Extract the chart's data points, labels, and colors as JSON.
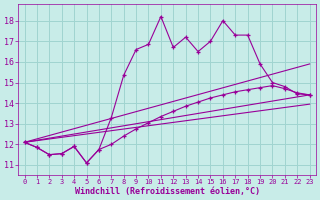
{
  "xlabel": "Windchill (Refroidissement éolien,°C)",
  "bg_color": "#c8ece8",
  "grid_color": "#a0d4d0",
  "line_color": "#990099",
  "x_ticks": [
    0,
    1,
    2,
    3,
    4,
    5,
    6,
    7,
    8,
    9,
    10,
    11,
    12,
    13,
    14,
    15,
    16,
    17,
    18,
    19,
    20,
    21,
    22,
    23
  ],
  "y_ticks": [
    11,
    12,
    13,
    14,
    15,
    16,
    17,
    18
  ],
  "ylim": [
    10.5,
    18.8
  ],
  "xlim": [
    -0.5,
    23.5
  ],
  "series1_x": [
    0,
    1,
    2,
    3,
    4,
    5,
    6,
    7,
    8,
    9,
    10,
    11,
    12,
    13,
    14,
    15,
    16,
    17,
    18,
    19,
    20,
    21,
    22,
    23
  ],
  "series1_y": [
    12.1,
    11.85,
    11.5,
    11.55,
    11.9,
    11.1,
    11.75,
    13.3,
    15.35,
    16.6,
    16.85,
    18.2,
    16.7,
    17.2,
    16.5,
    17.0,
    18.0,
    17.3,
    17.3,
    15.9,
    15.0,
    14.8,
    14.45,
    14.4
  ],
  "series2_x": [
    0,
    1,
    2,
    3,
    4,
    5,
    6,
    7,
    8,
    9,
    10,
    11,
    12,
    13,
    14,
    15,
    16,
    17,
    18,
    19,
    20,
    21,
    22,
    23
  ],
  "series2_y": [
    12.1,
    11.85,
    11.5,
    11.55,
    11.9,
    11.1,
    11.75,
    12.0,
    12.4,
    12.75,
    13.05,
    13.35,
    13.6,
    13.85,
    14.05,
    14.25,
    14.4,
    14.55,
    14.65,
    14.75,
    14.85,
    14.7,
    14.5,
    14.4
  ],
  "line3_y0": 12.1,
  "line3_y1": 13.95,
  "line4_y0": 12.1,
  "line4_y1": 14.4,
  "line5_y0": 12.1,
  "line5_y1": 15.9
}
